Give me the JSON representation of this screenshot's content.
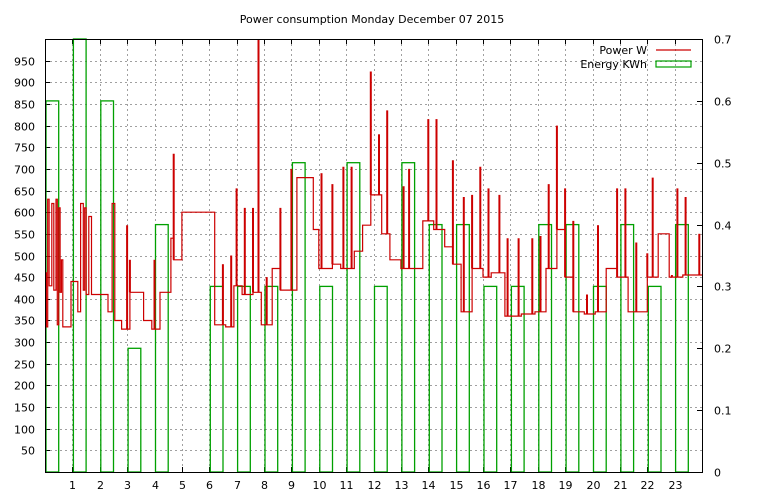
{
  "chart_data": {
    "type": "line",
    "title": "Power consumption Monday December 07 2015",
    "grid": true,
    "legend_position": "top-right",
    "x_ticks": [
      1,
      2,
      3,
      4,
      5,
      6,
      7,
      8,
      9,
      10,
      11,
      12,
      13,
      14,
      15,
      16,
      17,
      18,
      19,
      20,
      21,
      22,
      23
    ],
    "x_range": [
      0,
      24
    ],
    "y_left": {
      "range": [
        0,
        1000
      ],
      "ticks": [
        50,
        100,
        150,
        200,
        250,
        300,
        350,
        400,
        450,
        500,
        550,
        600,
        650,
        700,
        750,
        800,
        850,
        900,
        950
      ]
    },
    "y_right": {
      "range": [
        0,
        0.7
      ],
      "ticks": [
        "0",
        "0.1",
        "0.2",
        "0.3",
        "0.4",
        "0.5",
        "0.6",
        "0.7"
      ],
      "tick_values": [
        0,
        0.1,
        0.2,
        0.3,
        0.4,
        0.5,
        0.6,
        0.7
      ]
    },
    "series": [
      {
        "name": "Power W",
        "color": "#cc0000",
        "axis": "left",
        "style": "step",
        "points": [
          [
            0,
            460
          ],
          [
            0.05,
            335
          ],
          [
            0.1,
            630
          ],
          [
            0.15,
            430
          ],
          [
            0.25,
            620
          ],
          [
            0.32,
            420
          ],
          [
            0.4,
            630
          ],
          [
            0.45,
            340
          ],
          [
            0.5,
            610
          ],
          [
            0.55,
            415
          ],
          [
            0.6,
            490
          ],
          [
            0.65,
            335
          ],
          [
            0.95,
            440
          ],
          [
            1.2,
            370
          ],
          [
            1.3,
            620
          ],
          [
            1.4,
            420
          ],
          [
            1.45,
            610
          ],
          [
            1.5,
            410
          ],
          [
            1.6,
            590
          ],
          [
            1.7,
            410
          ],
          [
            2.3,
            370
          ],
          [
            2.45,
            620
          ],
          [
            2.55,
            350
          ],
          [
            2.8,
            330
          ],
          [
            3.1,
            415
          ],
          [
            3.6,
            350
          ],
          [
            3.9,
            330
          ],
          [
            4.2,
            415
          ],
          [
            4.6,
            540
          ],
          [
            4.7,
            490
          ],
          [
            4.8,
            490
          ],
          [
            5.0,
            600
          ],
          [
            6.2,
            340
          ],
          [
            6.4,
            340
          ],
          [
            6.6,
            335
          ],
          [
            6.9,
            430
          ],
          [
            7.2,
            410
          ],
          [
            7.6,
            415
          ],
          [
            7.9,
            340
          ],
          [
            8.3,
            470
          ],
          [
            8.6,
            420
          ],
          [
            9.2,
            680
          ],
          [
            9.8,
            560
          ],
          [
            10.0,
            470
          ],
          [
            10.5,
            480
          ],
          [
            10.8,
            470
          ],
          [
            11.3,
            510
          ],
          [
            11.6,
            570
          ],
          [
            11.9,
            640
          ],
          [
            12.3,
            550
          ],
          [
            12.6,
            490
          ],
          [
            13.0,
            470
          ],
          [
            13.4,
            470
          ],
          [
            13.8,
            580
          ],
          [
            14.2,
            560
          ],
          [
            14.6,
            520
          ],
          [
            14.9,
            480
          ],
          [
            15.2,
            370
          ],
          [
            15.6,
            470
          ],
          [
            16.0,
            450
          ],
          [
            16.3,
            460
          ],
          [
            16.8,
            360
          ],
          [
            17.4,
            365
          ],
          [
            17.9,
            370
          ],
          [
            18.3,
            470
          ],
          [
            18.7,
            560
          ],
          [
            19.0,
            450
          ],
          [
            19.3,
            370
          ],
          [
            19.7,
            365
          ],
          [
            20.1,
            370
          ],
          [
            20.5,
            470
          ],
          [
            20.9,
            450
          ],
          [
            21.3,
            370
          ],
          [
            21.7,
            370
          ],
          [
            22.0,
            450
          ],
          [
            22.4,
            550
          ],
          [
            22.8,
            450
          ],
          [
            23.3,
            455
          ],
          [
            24.0,
            455
          ]
        ],
        "spikes": [
          [
            0.1,
            630
          ],
          [
            0.25,
            620
          ],
          [
            0.4,
            630
          ],
          [
            0.5,
            610
          ],
          [
            1.3,
            620
          ],
          [
            1.45,
            610
          ],
          [
            2.45,
            620
          ],
          [
            3.0,
            570
          ],
          [
            3.1,
            490
          ],
          [
            4.0,
            490
          ],
          [
            4.7,
            735
          ],
          [
            6.5,
            480
          ],
          [
            6.8,
            500
          ],
          [
            7.0,
            655
          ],
          [
            7.3,
            610
          ],
          [
            7.6,
            610
          ],
          [
            7.8,
            1000
          ],
          [
            8.1,
            450
          ],
          [
            8.6,
            610
          ],
          [
            9.0,
            700
          ],
          [
            10.1,
            690
          ],
          [
            10.5,
            665
          ],
          [
            10.9,
            705
          ],
          [
            11.2,
            705
          ],
          [
            11.9,
            925
          ],
          [
            12.2,
            780
          ],
          [
            12.5,
            835
          ],
          [
            13.1,
            660
          ],
          [
            13.3,
            700
          ],
          [
            14.0,
            815
          ],
          [
            14.3,
            815
          ],
          [
            14.9,
            720
          ],
          [
            15.3,
            635
          ],
          [
            15.6,
            640
          ],
          [
            15.9,
            705
          ],
          [
            16.2,
            655
          ],
          [
            16.6,
            640
          ],
          [
            16.9,
            540
          ],
          [
            17.3,
            540
          ],
          [
            17.8,
            540
          ],
          [
            18.1,
            545
          ],
          [
            18.4,
            665
          ],
          [
            18.7,
            800
          ],
          [
            19.0,
            655
          ],
          [
            19.3,
            580
          ],
          [
            19.8,
            410
          ],
          [
            20.2,
            570
          ],
          [
            20.9,
            655
          ],
          [
            21.2,
            655
          ],
          [
            21.6,
            530
          ],
          [
            22.0,
            505
          ],
          [
            22.2,
            680
          ],
          [
            22.9,
            455
          ],
          [
            23.1,
            655
          ],
          [
            23.4,
            635
          ],
          [
            23.9,
            550
          ]
        ]
      },
      {
        "name": "Energy KWh",
        "color": "#00a000",
        "axis": "right",
        "style": "bars",
        "bars": [
          [
            0,
            0.6
          ],
          [
            1,
            0.7
          ],
          [
            2,
            0.6
          ],
          [
            3,
            0.2
          ],
          [
            4,
            0.4
          ],
          [
            5,
            0
          ],
          [
            6,
            0.3
          ],
          [
            7,
            0.3
          ],
          [
            8,
            0.3
          ],
          [
            9,
            0.5
          ],
          [
            10,
            0.3
          ],
          [
            11,
            0.5
          ],
          [
            12,
            0.3
          ],
          [
            13,
            0.5
          ],
          [
            14,
            0.4
          ],
          [
            15,
            0.4
          ],
          [
            16,
            0.3
          ],
          [
            17,
            0.3
          ],
          [
            18,
            0.4
          ],
          [
            19,
            0.4
          ],
          [
            20,
            0.3
          ],
          [
            21,
            0.4
          ],
          [
            22,
            0.3
          ],
          [
            23,
            0.4
          ]
        ]
      }
    ]
  }
}
